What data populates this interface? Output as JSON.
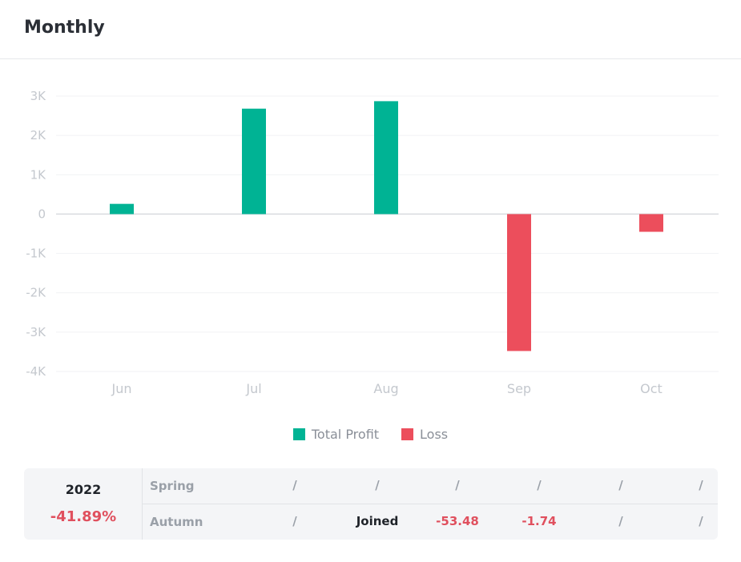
{
  "header": {
    "title": "Monthly"
  },
  "colors": {
    "profit": "#00b394",
    "loss": "#ec4e5c",
    "axis_text": "#c4c8ce",
    "grid": "#f1f2f4",
    "zero": "#d9dbdf"
  },
  "chart_data": {
    "type": "bar",
    "categories": [
      "Jun",
      "Jul",
      "Aug",
      "Sep",
      "Oct"
    ],
    "values": [
      260,
      2680,
      2870,
      -3480,
      -450
    ],
    "ylim": [
      -4000,
      3000
    ],
    "yticks": [
      3000,
      2000,
      1000,
      0,
      -1000,
      -2000,
      -3000,
      -4000
    ],
    "ytick_labels": [
      "3K",
      "2K",
      "1K",
      "0",
      "-1K",
      "-2K",
      "-3K",
      "-4K"
    ],
    "legend": [
      {
        "name": "Total Profit",
        "color": "#00b394"
      },
      {
        "name": "Loss",
        "color": "#ec4e5c"
      }
    ],
    "legend_position": "bottom",
    "grid": true
  },
  "stats": {
    "year": "2022",
    "ytd": "-41.89%",
    "rows": [
      {
        "season": "Spring",
        "cells": [
          "/",
          "/",
          "/",
          "/",
          "/",
          "/"
        ]
      },
      {
        "season": "Autumn",
        "cells": [
          "/",
          "Joined",
          "-53.48",
          "-1.74",
          "/",
          "/"
        ]
      }
    ]
  }
}
